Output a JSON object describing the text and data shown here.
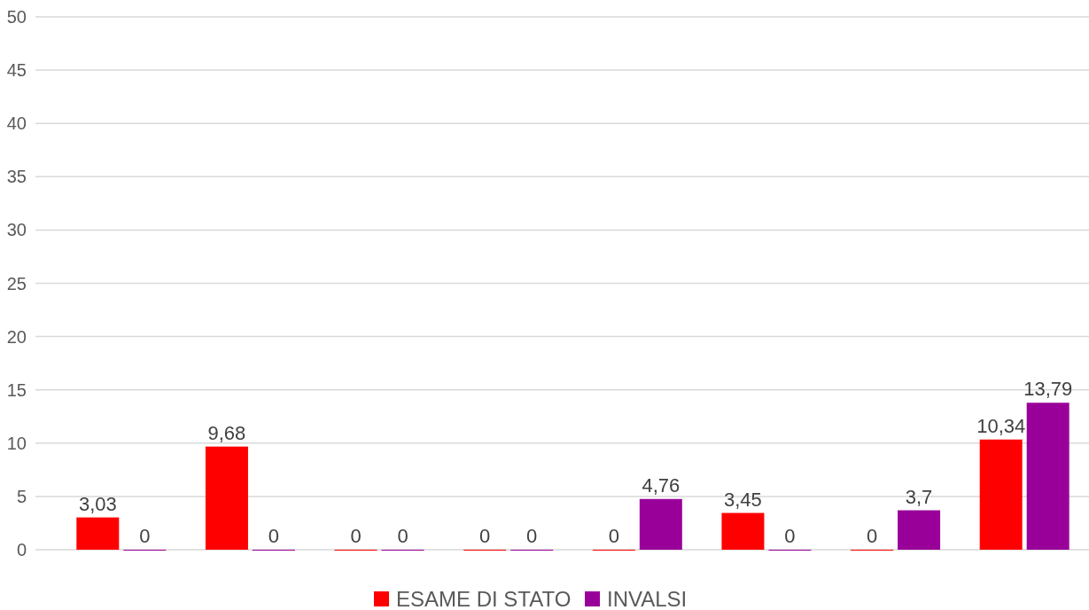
{
  "chart_data": {
    "type": "bar",
    "categories": [
      null,
      null,
      null,
      null,
      null,
      null,
      null,
      null
    ],
    "series": [
      {
        "name": "ESAME DI STATO",
        "color": "#ff0000",
        "values": [
          3.03,
          9.68,
          0,
          0,
          0,
          3.45,
          0,
          10.34
        ],
        "value_labels": [
          "3,03",
          "9,68",
          "0",
          "0",
          "0",
          "3,45",
          "0",
          "10,34"
        ]
      },
      {
        "name": "INVALSI",
        "color": "#990099",
        "values": [
          0,
          0,
          0,
          0,
          4.76,
          0,
          3.7,
          13.79
        ],
        "value_labels": [
          "0",
          "0",
          "0",
          "0",
          "4,76",
          "0",
          "3,7",
          "13,79"
        ]
      }
    ],
    "ylim": [
      0,
      50
    ],
    "yticks": [
      0,
      5,
      10,
      15,
      20,
      25,
      30,
      35,
      40,
      45,
      50
    ],
    "grid": "y",
    "legend": "bottom"
  }
}
